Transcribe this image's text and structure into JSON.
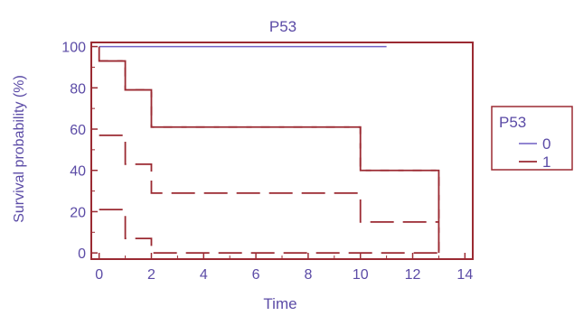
{
  "chart_data": {
    "type": "line",
    "title": "P53",
    "xlabel": "Time",
    "ylabel": "Survival probability (%)",
    "xlim": [
      -0.3,
      14.3
    ],
    "ylim": [
      -3,
      102
    ],
    "x_ticks": [
      0,
      2,
      4,
      6,
      8,
      10,
      12,
      14
    ],
    "y_ticks": [
      0,
      20,
      40,
      60,
      80,
      100
    ],
    "grid": false,
    "legend": {
      "title": "P53",
      "position": "right",
      "entries": [
        {
          "label": "0",
          "style": "solid",
          "color": "#6f5fc4"
        },
        {
          "label": "1",
          "style": "dashed",
          "color": "#9b2a32"
        }
      ]
    },
    "series": [
      {
        "name": "0",
        "style": "solid",
        "color": "#6f5fc4",
        "kind": "survival",
        "steps": [
          [
            0,
            100
          ],
          [
            11,
            100
          ]
        ]
      },
      {
        "name": "1",
        "style": "dashed",
        "color": "#9b2a32",
        "kind": "survival",
        "steps": [
          [
            0,
            93
          ],
          [
            1,
            79
          ],
          [
            2,
            61
          ],
          [
            10,
            40
          ],
          [
            13,
            40
          ],
          [
            13,
            0
          ]
        ]
      },
      {
        "name": "1",
        "style": "dashed",
        "color": "#9b2a32",
        "kind": "ci-upper",
        "steps": [
          [
            0,
            100
          ],
          [
            0,
            93
          ],
          [
            1,
            79
          ],
          [
            2,
            61
          ],
          [
            10,
            40
          ],
          [
            13,
            40
          ],
          [
            13,
            0
          ]
        ]
      },
      {
        "name": "1",
        "style": "dashed",
        "color": "#9b2a32",
        "kind": "ci-middle",
        "steps": [
          [
            0,
            57
          ],
          [
            1,
            43
          ],
          [
            2,
            29
          ],
          [
            10,
            15
          ],
          [
            13,
            15
          ]
        ]
      },
      {
        "name": "1",
        "style": "dashed",
        "color": "#9b2a32",
        "kind": "ci-lower",
        "steps": [
          [
            0,
            21
          ],
          [
            1,
            7
          ],
          [
            2,
            0
          ],
          [
            13,
            0
          ]
        ]
      }
    ]
  },
  "colors": {
    "axis": "#9b2a32",
    "text": "#5b4ba6"
  }
}
